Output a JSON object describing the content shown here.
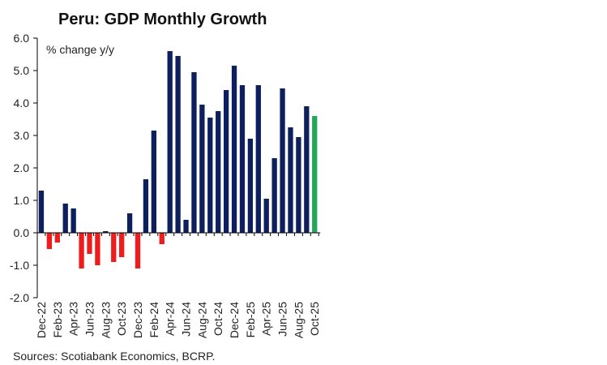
{
  "chart_data": {
    "type": "bar",
    "title": "Peru: GDP Monthly Growth",
    "annotation": "% change y/y",
    "source": "Sources: Scotiabank Economics, BCRP.",
    "ylim": [
      -2.0,
      6.0
    ],
    "yticks": [
      "6.0",
      "5.0",
      "4.0",
      "3.0",
      "2.0",
      "1.0",
      "0.0",
      "-1.0",
      "-2.0"
    ],
    "categories": [
      "Dec-22",
      "Jan-23",
      "Feb-23",
      "Mar-23",
      "Apr-23",
      "May-23",
      "Jun-23",
      "Jul-23",
      "Aug-23",
      "Sep-23",
      "Oct-23",
      "Nov-23",
      "Dec-23",
      "Jan-24",
      "Feb-24",
      "Mar-24",
      "Apr-24",
      "May-24",
      "Jun-24",
      "Jul-24",
      "Aug-24",
      "Sep-24",
      "Oct-24",
      "Nov-24",
      "Dec-24",
      "Jan-25",
      "Feb-25",
      "Mar-25",
      "Apr-25",
      "May-25",
      "Jun-25",
      "Jul-25",
      "Aug-25",
      "Sep-25",
      "Oct-25"
    ],
    "xtick_labels": [
      "Dec-22",
      "Feb-23",
      "Apr-23",
      "Jun-23",
      "Aug-23",
      "Oct-23",
      "Dec-23",
      "Feb-24",
      "Apr-24",
      "Jun-24",
      "Aug-24",
      "Oct-24",
      "Dec-24",
      "Feb-25",
      "Apr-25",
      "Jun-25",
      "Aug-25",
      "Oct-25"
    ],
    "values": [
      1.3,
      -0.5,
      -0.3,
      0.9,
      0.75,
      -1.1,
      -0.65,
      -1.0,
      0.05,
      -0.9,
      -0.75,
      0.6,
      -1.1,
      1.65,
      3.15,
      -0.35,
      5.6,
      5.45,
      0.4,
      4.95,
      3.95,
      3.55,
      3.75,
      4.4,
      5.15,
      4.55,
      2.9,
      4.55,
      1.05,
      2.3,
      4.45,
      3.25,
      2.95,
      3.9,
      3.6
    ],
    "colors": {
      "positive": "#0d1f5c",
      "negative": "#ee1c1c",
      "latest": "#22a85a",
      "axis": "#000000"
    },
    "grid": false
  }
}
